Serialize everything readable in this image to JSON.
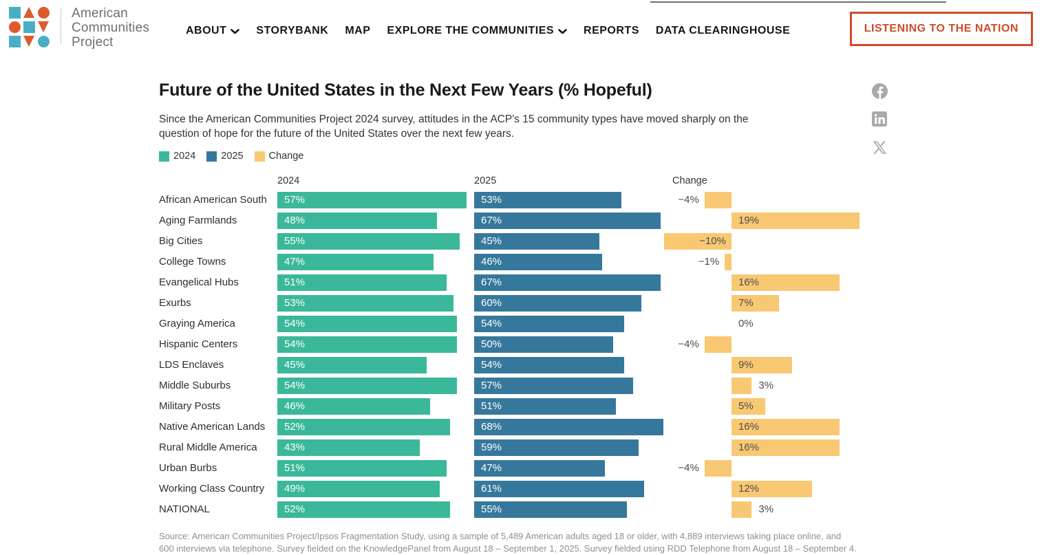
{
  "nav": {
    "brand": {
      "line1": "American",
      "line2": "Communities",
      "line3": "Project"
    },
    "items": [
      {
        "label": "ABOUT",
        "has_dropdown": true
      },
      {
        "label": "STORYBANK",
        "has_dropdown": false
      },
      {
        "label": "MAP",
        "has_dropdown": false
      },
      {
        "label": "EXPLORE THE COMMUNITIES",
        "has_dropdown": true
      },
      {
        "label": "REPORTS",
        "has_dropdown": false
      },
      {
        "label": "DATA CLEARINGHOUSE",
        "has_dropdown": false
      }
    ],
    "cta_label": "LISTENING TO THE NATION"
  },
  "social": {
    "icons": [
      "facebook-icon",
      "linkedin-icon",
      "x-icon"
    ],
    "color": "#a9a9a9"
  },
  "colors": {
    "logo_blue": "#4AAFC4",
    "logo_orange": "#DC5B2D",
    "accent_cta": "#D1492A",
    "bar_2024": "#3BB89A",
    "bar_2025": "#36789B",
    "bar_change": "#F8C873"
  },
  "chart": {
    "title": "Future of the United States in the Next Few Years (% Hopeful)",
    "subtitle": "Since the American Communities Project 2024 survey, attitudes in the ACP's 15 community types have moved sharply on the question of hope for the future of the United States over the next few years.",
    "legend": [
      {
        "label": "2024",
        "color": "#3BB89A"
      },
      {
        "label": "2025",
        "color": "#36789B"
      },
      {
        "label": "Change",
        "color": "#F8C873"
      }
    ],
    "column_headers": [
      "2024",
      "2025",
      "Change"
    ],
    "source_line1": "Source: American Communities Project/Ipsos Fragmentation Study, using a sample of 5,489 American adults aged 18 or older, with 4,889 interviews taking place online, and",
    "source_line2": "600 interviews via telephone. Survey fielded on the KnowledgePanel from August 18 – September 1, 2025. Survey fielded using RDD Telephone from August 18 – September 4."
  },
  "chart_data": {
    "type": "bar",
    "orientation": "horizontal",
    "categories": [
      "African American South",
      "Aging Farmlands",
      "Big Cities",
      "College Towns",
      "Evangelical Hubs",
      "Exurbs",
      "Graying America",
      "Hispanic Centers",
      "LDS Enclaves",
      "Middle Suburbs",
      "Military Posts",
      "Native American Lands",
      "Rural Middle America",
      "Urban Burbs",
      "Working Class Country",
      "NATIONAL"
    ],
    "series": [
      {
        "name": "2024",
        "color": "#3BB89A",
        "unit": "%",
        "values": [
          57,
          48,
          55,
          47,
          51,
          53,
          54,
          54,
          45,
          54,
          46,
          52,
          43,
          51,
          49,
          52
        ]
      },
      {
        "name": "2025",
        "color": "#36789B",
        "unit": "%",
        "values": [
          53,
          67,
          45,
          46,
          67,
          60,
          54,
          50,
          54,
          57,
          51,
          68,
          59,
          47,
          61,
          55
        ]
      },
      {
        "name": "Change",
        "color": "#F8C873",
        "unit": "%",
        "values": [
          -4,
          19,
          -10,
          -1,
          16,
          7,
          0,
          -4,
          9,
          3,
          5,
          16,
          16,
          -4,
          12,
          3
        ]
      }
    ],
    "title": "Future of the United States in the Next Few Years (% Hopeful)",
    "xlabel": "",
    "ylabel": "",
    "value_labels_shown": true,
    "legend_position": "top-left",
    "grid": false
  }
}
